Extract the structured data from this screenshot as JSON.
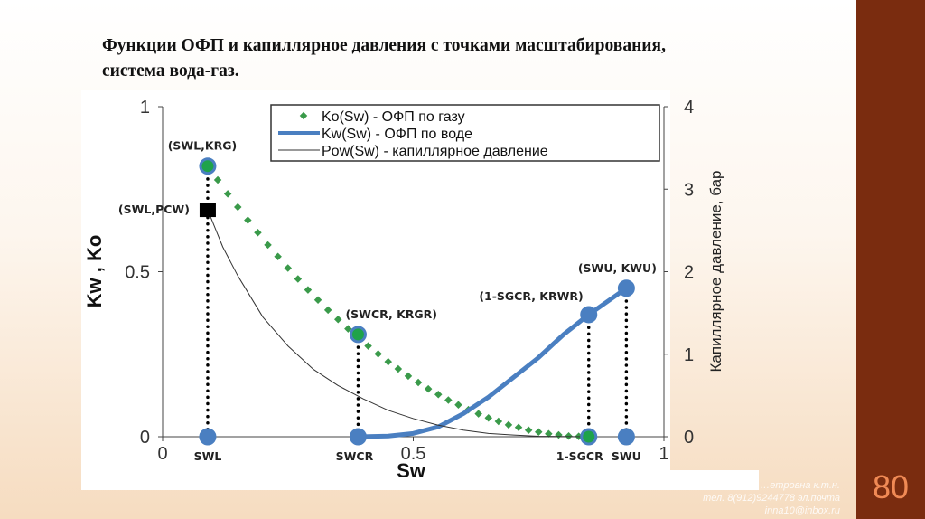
{
  "slide": {
    "title": "Функции ОФП и капиллярное давления с точками масштабирования, система вода-газ.",
    "page_number": "80",
    "footer": [
      "…етровна к.т.н.",
      "тел. 8(912)9244778 эл.почта",
      "inna10@inbox.ru"
    ]
  },
  "chart_data": {
    "type": "line",
    "xlabel": "Sw",
    "ylabel": "Kw , Ko",
    "y2label": "Капиллярное давление, бар",
    "xlim": [
      0,
      1
    ],
    "ylim": [
      0,
      1
    ],
    "y2lim": [
      0,
      4
    ],
    "x_ticks": [
      "0",
      "0.5",
      "1"
    ],
    "y_ticks": [
      "0",
      "0.5",
      "1"
    ],
    "y2_ticks": [
      "0",
      "1",
      "2",
      "3",
      "4"
    ],
    "legend_position": "top",
    "series": [
      {
        "name": "Ko(Sw) - ОФП  по газу",
        "axis": "left",
        "style": "diamonds",
        "color": "#3a9a4a",
        "x": [
          0.09,
          0.13,
          0.17,
          0.21,
          0.25,
          0.29,
          0.33,
          0.37,
          0.41,
          0.45,
          0.49,
          0.53,
          0.57,
          0.61,
          0.65,
          0.69,
          0.73,
          0.77,
          0.81,
          0.85
        ],
        "y": [
          0.82,
          0.736,
          0.656,
          0.581,
          0.511,
          0.445,
          0.384,
          0.327,
          0.275,
          0.227,
          0.184,
          0.145,
          0.111,
          0.082,
          0.057,
          0.036,
          0.02,
          0.009,
          0.002,
          0
        ]
      },
      {
        "name": "Kw(Sw) - ОФП  по воде",
        "axis": "left",
        "style": "thick",
        "color": "#4a7fc1",
        "x": [
          0.39,
          0.45,
          0.5,
          0.55,
          0.6,
          0.65,
          0.7,
          0.75,
          0.8,
          0.85,
          0.925
        ],
        "y": [
          0,
          0.002,
          0.01,
          0.03,
          0.07,
          0.12,
          0.18,
          0.24,
          0.31,
          0.37,
          0.45
        ]
      },
      {
        "name": "Pow(Sw) - капиллярное  давление",
        "axis": "right",
        "style": "thin",
        "color": "#333333",
        "x": [
          0.09,
          0.12,
          0.15,
          0.2,
          0.25,
          0.3,
          0.35,
          0.4,
          0.45,
          0.5,
          0.55,
          0.6,
          0.65,
          0.7,
          0.75,
          0.85
        ],
        "y": [
          2.75,
          2.3,
          1.95,
          1.45,
          1.1,
          0.82,
          0.62,
          0.46,
          0.32,
          0.22,
          0.14,
          0.08,
          0.04,
          0.02,
          0.005,
          0
        ]
      }
    ],
    "points": [
      {
        "label": "(SWL,KRG)",
        "x": 0.09,
        "y": 0.82,
        "fill": "#1fa34a"
      },
      {
        "label": "(SWL,PCW)",
        "x": 0.09,
        "y2": 2.75,
        "marker": "square"
      },
      {
        "label": "(SWCR, KRGR)",
        "x": 0.39,
        "y": 0.31,
        "fill": "#1fa34a"
      },
      {
        "label": "(1-SGCR, KRWR)",
        "x": 0.85,
        "y": 0.37,
        "fill": "#4a7fc1"
      },
      {
        "label": "(SWU, KWU)",
        "x": 0.925,
        "y": 0.45,
        "fill": "#4a7fc1"
      },
      {
        "label": "SWL",
        "x": 0.09,
        "y": 0,
        "fill": "#4a7fc1"
      },
      {
        "label": "SWCR",
        "x": 0.39,
        "y": 0,
        "fill": "#4a7fc1"
      },
      {
        "label": "1-SGCR",
        "x": 0.85,
        "y": 0,
        "fill": "#1fa34a"
      },
      {
        "label": "SWU",
        "x": 0.925,
        "y": 0,
        "fill": "#4a7fc1"
      }
    ]
  }
}
